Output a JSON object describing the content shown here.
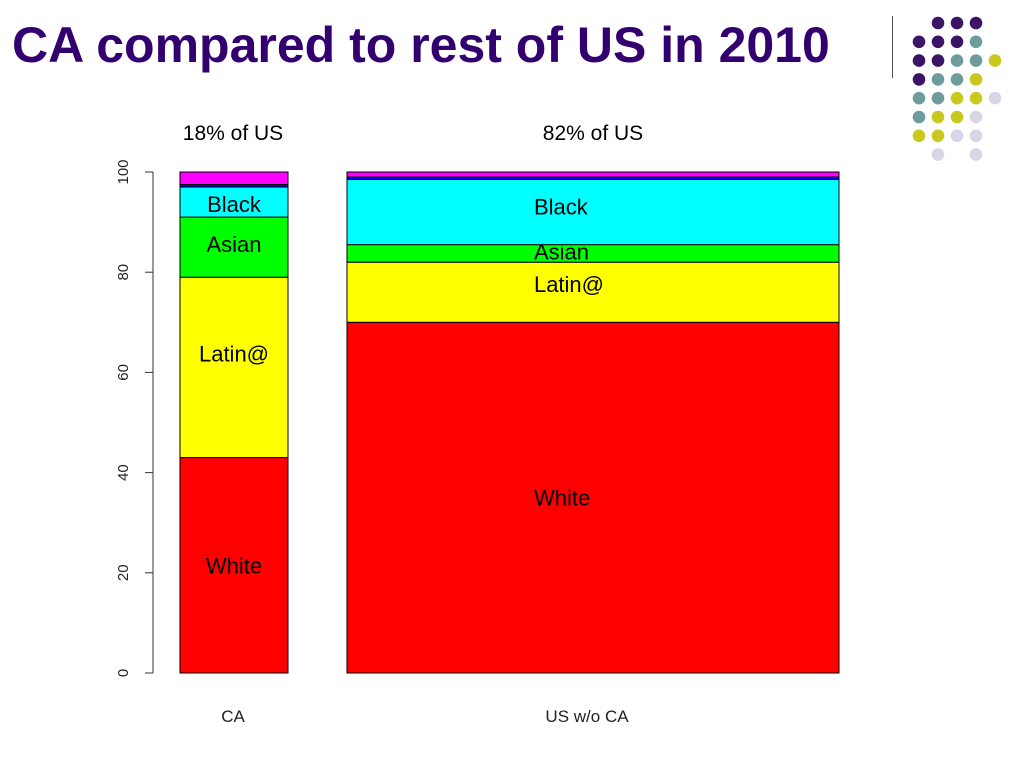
{
  "slide": {
    "title": "CA compared to rest of US in 2010",
    "title_color": "#33006f",
    "decoration_colors": [
      "#3b1466",
      "#6e9c9c",
      "#c8c81e",
      "#d6d6e6"
    ]
  },
  "chart_data": {
    "type": "mosaic",
    "title": "",
    "xlabel": "",
    "ylabel": "",
    "ylim": [
      0,
      100
    ],
    "yticks": [
      0,
      20,
      40,
      60,
      80,
      100
    ],
    "grid": false,
    "legend": "none",
    "categories": [
      "CA",
      "US w/o CA"
    ],
    "width_labels": [
      "18% of US",
      "82% of US"
    ],
    "width_share": [
      18,
      82
    ],
    "series": [
      {
        "label": "White",
        "color": "#ff0000",
        "values": [
          43,
          70
        ]
      },
      {
        "label": "Latin@",
        "color": "#ffff00",
        "values": [
          36,
          12
        ]
      },
      {
        "label": "Asian",
        "color": "#00ff00",
        "values": [
          12,
          3.5
        ]
      },
      {
        "label": "Black",
        "color": "#00ffff",
        "values": [
          6,
          13
        ]
      },
      {
        "label": "",
        "color": "#0000ff",
        "values": [
          0.5,
          0.5
        ]
      },
      {
        "label": "",
        "color": "#ff00ff",
        "values": [
          2.5,
          1
        ]
      }
    ]
  }
}
